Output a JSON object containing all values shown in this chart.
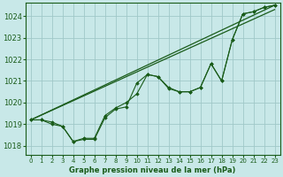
{
  "background_color": "#c8e8e8",
  "grid_color": "#a0c8c8",
  "line_color": "#1a5c1a",
  "marker_color": "#1a5c1a",
  "xlabel": "Graphe pression niveau de la mer (hPa)",
  "xlim": [
    -0.5,
    23.5
  ],
  "ylim": [
    1017.6,
    1024.6
  ],
  "yticks": [
    1018,
    1019,
    1020,
    1021,
    1022,
    1023,
    1024
  ],
  "xticks": [
    0,
    1,
    2,
    3,
    4,
    5,
    6,
    7,
    8,
    9,
    10,
    11,
    12,
    13,
    14,
    15,
    16,
    17,
    18,
    19,
    20,
    21,
    22,
    23
  ],
  "series_main": [
    1019.2,
    1019.2,
    1019.1,
    1018.9,
    1018.2,
    1018.3,
    1018.3,
    1019.3,
    1019.7,
    1019.8,
    1020.9,
    1021.3,
    1021.2,
    1020.7,
    1020.5,
    1020.5,
    1020.7,
    1021.8,
    1021.0,
    1022.9,
    1024.1,
    1024.2,
    1024.4,
    1024.5
  ],
  "series_wiggly": [
    1019.2,
    1019.2,
    1019.0,
    1018.9,
    1018.2,
    1018.35,
    1018.35,
    1019.4,
    1019.75,
    1020.0,
    1020.4,
    1021.3,
    1021.2,
    1020.65,
    1020.5,
    1020.5,
    1020.7,
    1021.8,
    1021.0,
    1022.9,
    1024.1,
    1024.2,
    1024.4,
    1024.5
  ],
  "trend1_x": [
    0,
    23
  ],
  "trend1_y": [
    1019.2,
    1024.5
  ],
  "trend2_x": [
    0,
    23
  ],
  "trend2_y": [
    1019.2,
    1024.3
  ]
}
